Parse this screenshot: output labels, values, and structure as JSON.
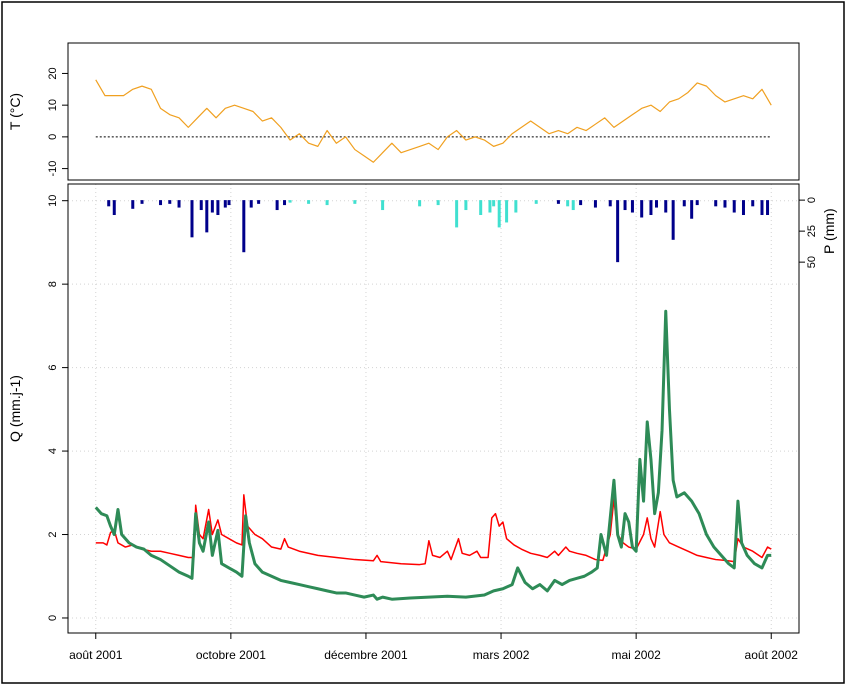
{
  "chart_data": [
    {
      "type": "line",
      "y_label": "T (°C)",
      "xlim": [
        -15,
        380
      ],
      "ylim": [
        -13.6,
        29.6
      ],
      "yticks": [
        -10,
        0,
        10,
        20
      ],
      "hline": 0,
      "grid": false,
      "series": [
        {
          "color": "#f0a020",
          "x": [
            0,
            5,
            10,
            15,
            20,
            25,
            30,
            35,
            40,
            45,
            50,
            55,
            60,
            65,
            70,
            75,
            80,
            85,
            90,
            95,
            100,
            105,
            110,
            115,
            120,
            125,
            130,
            135,
            140,
            145,
            150,
            155,
            160,
            165,
            170,
            175,
            180,
            185,
            190,
            195,
            200,
            205,
            210,
            215,
            220,
            225,
            230,
            235,
            240,
            245,
            250,
            255,
            260,
            265,
            270,
            275,
            280,
            285,
            290,
            295,
            300,
            305,
            310,
            315,
            320,
            325,
            330,
            335,
            340,
            345,
            350,
            355,
            360,
            365
          ],
          "values": [
            18,
            13,
            13,
            13,
            15,
            16,
            15,
            9,
            7,
            6,
            3,
            6,
            9,
            6,
            9,
            10,
            9,
            8,
            5,
            6,
            3,
            -1,
            1,
            -2,
            -3,
            2,
            -2,
            0,
            -4,
            -6,
            -8,
            -5,
            -2,
            -5,
            -4,
            -3,
            -2,
            -4,
            0,
            2,
            -1,
            0,
            -1,
            -3,
            -2,
            1,
            3,
            5,
            3,
            1,
            2,
            1,
            3,
            2,
            4,
            6,
            3,
            5,
            7,
            9,
            10,
            8,
            11,
            12,
            14,
            17,
            16,
            13,
            11,
            12,
            13,
            12,
            15,
            10
          ]
        }
      ]
    },
    {
      "type": "combo",
      "y_label": "Q (mm.j-1)",
      "y2_label": "P (mm)",
      "xlim": [
        -15,
        380
      ],
      "ylim": [
        -0.36,
        10.4
      ],
      "yticks": [
        0,
        2,
        4,
        6,
        8,
        10
      ],
      "y2lim": [
        -13,
        349
      ],
      "y2ticks": [
        0,
        25,
        50
      ],
      "y2_inverted": true,
      "grid": true,
      "xticks": [
        {
          "value": 0,
          "label": "août 2001"
        },
        {
          "value": 73,
          "label": "octobre 2001"
        },
        {
          "value": 146,
          "label": "décembre 2001"
        },
        {
          "value": 219,
          "label": "mars 2002"
        },
        {
          "value": 292,
          "label": "mai 2002"
        },
        {
          "value": 365,
          "label": "août 2002"
        }
      ],
      "series": [
        {
          "type": "bar",
          "axis": "y2",
          "color": "#00008b",
          "x": [
            7,
            10,
            20,
            25,
            35,
            40,
            45,
            52,
            57,
            60,
            63,
            66,
            70,
            72,
            80,
            84,
            88,
            98,
            102,
            250,
            262,
            270,
            278,
            282,
            286,
            290,
            295,
            300,
            303,
            308,
            312,
            318,
            322,
            325,
            335,
            340,
            345,
            350,
            355,
            360,
            363
          ],
          "values": [
            5,
            12,
            7,
            3,
            4,
            3,
            6,
            30,
            8,
            26,
            10,
            12,
            6,
            4,
            42,
            6,
            3,
            8,
            4,
            3,
            4,
            6,
            5,
            50,
            8,
            10,
            14,
            12,
            6,
            10,
            32,
            5,
            15,
            4,
            5,
            6,
            10,
            12,
            5,
            12,
            12
          ]
        },
        {
          "type": "bar",
          "axis": "y2",
          "color": "#40e0d0",
          "x": [
            105,
            115,
            125,
            140,
            155,
            175,
            185,
            195,
            200,
            208,
            213,
            215,
            218,
            222,
            227,
            238,
            255,
            258
          ],
          "values": [
            2,
            3,
            4,
            3,
            8,
            5,
            4,
            22,
            8,
            12,
            10,
            5,
            22,
            18,
            10,
            3,
            5,
            8
          ]
        },
        {
          "type": "line",
          "color": "#ff0000",
          "width": 1.5,
          "x": [
            0,
            4,
            6,
            8,
            10,
            12,
            16,
            20,
            25,
            30,
            35,
            40,
            45,
            50,
            53,
            54,
            56,
            58,
            61,
            63,
            66,
            68,
            72,
            76,
            79,
            80,
            82,
            86,
            90,
            95,
            100,
            102,
            104,
            110,
            120,
            130,
            140,
            150,
            152,
            154,
            165,
            175,
            178,
            180,
            182,
            186,
            190,
            192,
            196,
            198,
            202,
            206,
            208,
            212,
            214,
            216,
            218,
            220,
            222,
            226,
            230,
            235,
            240,
            244,
            248,
            250,
            254,
            256,
            260,
            265,
            270,
            274,
            278,
            280,
            282,
            285,
            288,
            292,
            296,
            298,
            300,
            302,
            305,
            307,
            310,
            315,
            320,
            325,
            330,
            335,
            340,
            345,
            347,
            350,
            355,
            360,
            363,
            365
          ],
          "values": [
            1.8,
            1.8,
            1.75,
            2.05,
            2.1,
            1.8,
            1.7,
            1.75,
            1.65,
            1.6,
            1.6,
            1.55,
            1.5,
            1.45,
            1.45,
            2.7,
            2.0,
            1.9,
            2.6,
            2.0,
            2.35,
            2.0,
            1.9,
            1.8,
            1.75,
            2.95,
            2.2,
            2.0,
            1.9,
            1.7,
            1.65,
            1.9,
            1.7,
            1.6,
            1.5,
            1.45,
            1.4,
            1.37,
            1.5,
            1.35,
            1.3,
            1.28,
            1.3,
            1.85,
            1.5,
            1.45,
            1.6,
            1.4,
            1.9,
            1.55,
            1.5,
            1.6,
            1.45,
            1.45,
            2.4,
            2.5,
            2.2,
            2.3,
            1.9,
            1.75,
            1.65,
            1.55,
            1.5,
            1.45,
            1.6,
            1.5,
            1.7,
            1.6,
            1.55,
            1.5,
            1.4,
            1.38,
            2.0,
            2.85,
            2.0,
            1.8,
            1.7,
            1.65,
            2.0,
            2.4,
            1.9,
            1.7,
            2.55,
            2.0,
            1.8,
            1.7,
            1.6,
            1.5,
            1.45,
            1.4,
            1.38,
            1.35,
            1.9,
            1.7,
            1.6,
            1.45,
            1.7,
            1.65
          ]
        },
        {
          "type": "line",
          "color": "#2e8b57",
          "width": 3,
          "x": [
            0,
            3,
            6,
            8,
            10,
            12,
            14,
            18,
            22,
            26,
            30,
            35,
            40,
            45,
            50,
            52,
            54,
            56,
            58,
            61,
            63,
            66,
            68,
            72,
            76,
            79,
            81,
            83,
            86,
            90,
            95,
            100,
            105,
            110,
            115,
            120,
            125,
            130,
            135,
            140,
            145,
            150,
            152,
            155,
            160,
            170,
            180,
            190,
            200,
            210,
            215,
            220,
            225,
            228,
            232,
            236,
            240,
            244,
            248,
            252,
            256,
            260,
            264,
            268,
            271,
            273,
            276,
            278,
            280,
            282,
            284,
            286,
            288,
            290,
            292,
            294,
            296,
            298,
            300,
            302,
            304,
            306,
            308,
            310,
            312,
            314,
            318,
            322,
            326,
            330,
            334,
            338,
            342,
            345,
            347,
            349,
            352,
            356,
            360,
            363,
            365
          ],
          "values": [
            2.65,
            2.5,
            2.45,
            2.2,
            2.0,
            2.6,
            2.0,
            1.8,
            1.7,
            1.65,
            1.5,
            1.4,
            1.25,
            1.1,
            1.0,
            0.95,
            2.5,
            1.8,
            1.6,
            2.3,
            1.5,
            2.1,
            1.3,
            1.2,
            1.1,
            1.0,
            2.45,
            1.8,
            1.3,
            1.1,
            1.0,
            0.9,
            0.85,
            0.8,
            0.75,
            0.7,
            0.65,
            0.6,
            0.6,
            0.55,
            0.5,
            0.55,
            0.45,
            0.5,
            0.45,
            0.48,
            0.5,
            0.52,
            0.5,
            0.55,
            0.65,
            0.7,
            0.8,
            1.2,
            0.85,
            0.7,
            0.8,
            0.65,
            0.9,
            0.8,
            0.9,
            0.95,
            1.0,
            1.1,
            1.2,
            2.0,
            1.5,
            2.4,
            3.3,
            2.0,
            1.7,
            2.5,
            2.3,
            1.7,
            1.6,
            3.8,
            2.8,
            4.7,
            3.8,
            2.5,
            3.0,
            4.5,
            7.35,
            5.0,
            3.3,
            2.9,
            3.0,
            2.8,
            2.5,
            2.0,
            1.7,
            1.5,
            1.3,
            1.2,
            2.8,
            1.8,
            1.5,
            1.3,
            1.2,
            1.5,
            1.5
          ]
        }
      ]
    }
  ]
}
